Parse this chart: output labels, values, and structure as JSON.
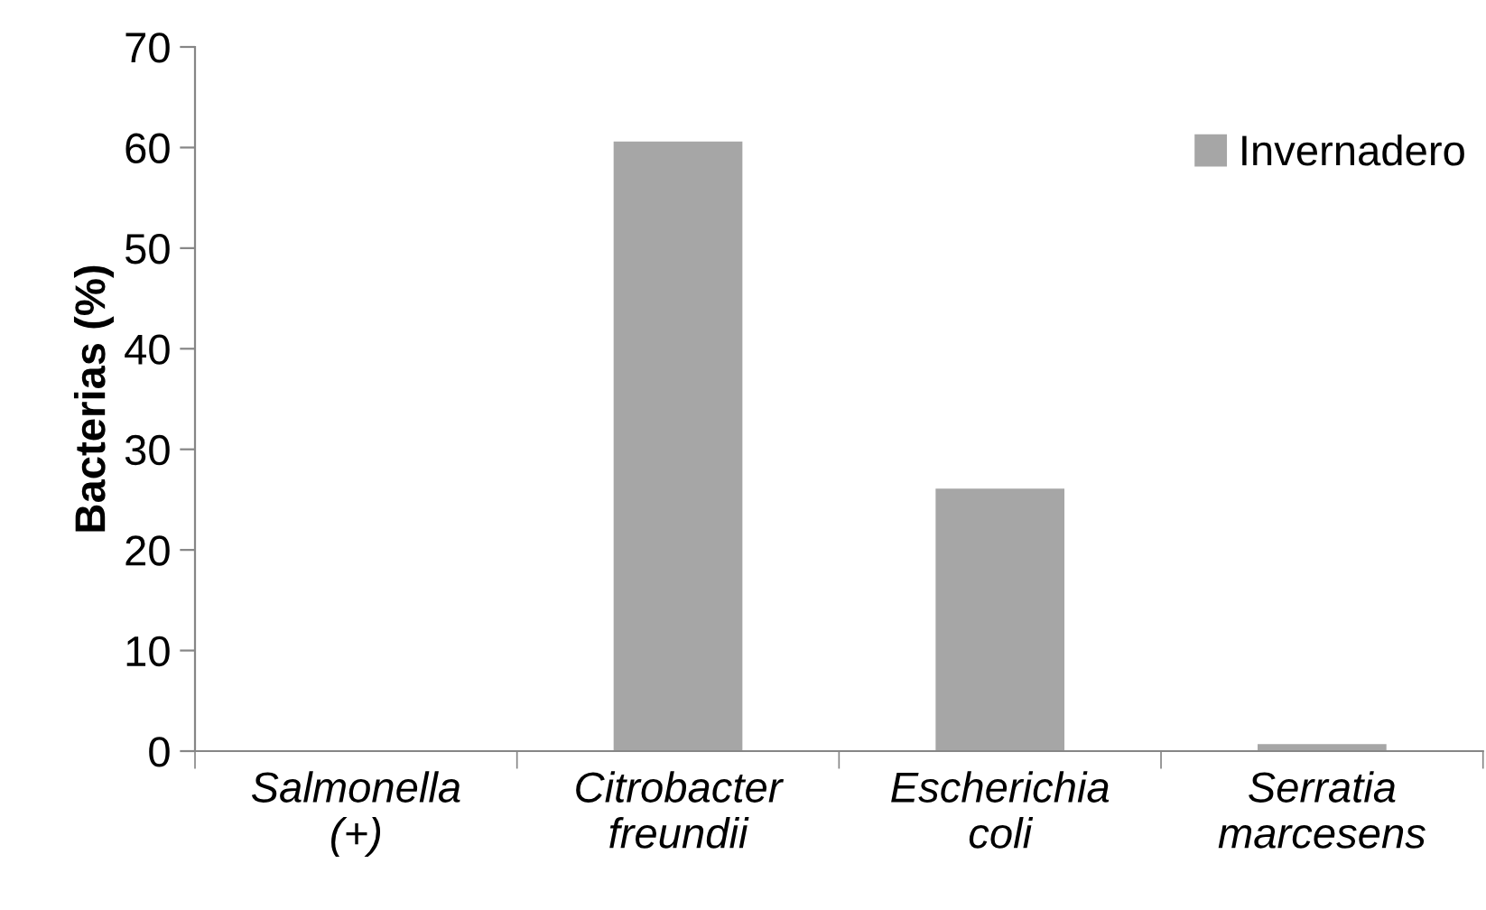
{
  "chart_data": {
    "type": "bar",
    "ylabel": "Bacterias (%)",
    "categories": [
      "Salmonella\n(+)",
      "Citrobacter\nfreundii",
      "Escherichia\ncoli",
      "Serratia\nmarcesens"
    ],
    "series": [
      {
        "name": "Invernadero",
        "color": "#a6a6a6",
        "values": [
          0,
          60.6,
          26.1,
          0.7
        ]
      }
    ],
    "ylim": [
      0,
      70
    ],
    "yticks": [
      0,
      10,
      20,
      30,
      40,
      50,
      60,
      70
    ],
    "grid": false,
    "legend": "top right"
  }
}
